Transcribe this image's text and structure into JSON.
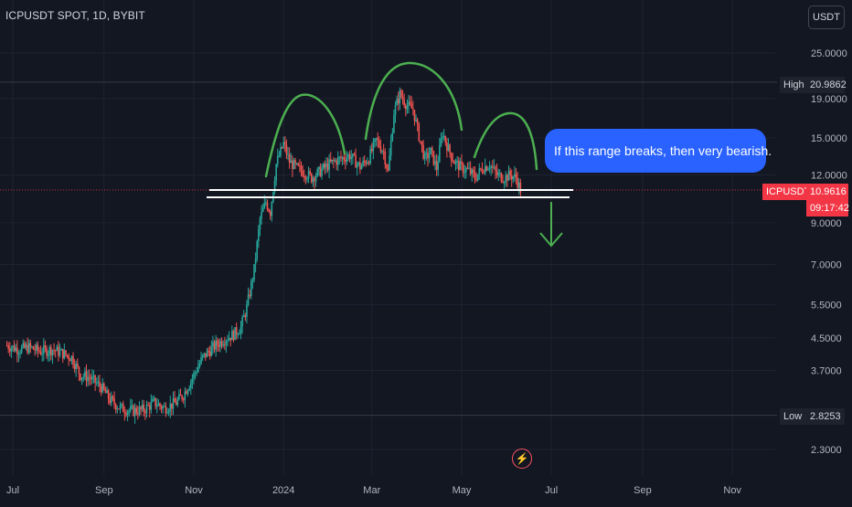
{
  "header": {
    "symbol_title": "ICPUSDT SPOT, 1D, BYBIT",
    "currency_button": "USDT"
  },
  "annotation": {
    "callout_text": "If this range breaks, then very bearish."
  },
  "price_tags": {
    "high_label": "High",
    "high_value": "20.9862",
    "low_label": "Low",
    "low_value": "2.8253",
    "symbol_label": "ICPUSDT",
    "current_value": "10.9616",
    "countdown": "09:17:42"
  },
  "icons": {
    "bolt": "lightning-icon"
  },
  "colors": {
    "background": "#131722",
    "up": "#26a69a",
    "down": "#ef5350",
    "grid": "#1f2230",
    "annotation_green": "#4caf50",
    "callout_blue": "#2962ff",
    "last_price_red": "#f23645"
  },
  "chart_data": {
    "type": "candlestick",
    "title": "ICPUSDT SPOT, 1D, BYBIT",
    "y_scale": "log",
    "ylim": [
      2.05,
      28.5
    ],
    "y_ticks": [
      {
        "label": "25.0000",
        "value": 25
      },
      {
        "label": "19.0000",
        "value": 19
      },
      {
        "label": "15.0000",
        "value": 15
      },
      {
        "label": "12.0000",
        "value": 12
      },
      {
        "label": "9.0000",
        "value": 9
      },
      {
        "label": "7.0000",
        "value": 7
      },
      {
        "label": "5.5000",
        "value": 5.5
      },
      {
        "label": "4.5000",
        "value": 4.5
      },
      {
        "label": "3.7000",
        "value": 3.7
      },
      {
        "label": "2.3000",
        "value": 2.3
      }
    ],
    "x_ticks": [
      {
        "label": "Jul",
        "date": "2023-07-01"
      },
      {
        "label": "Sep",
        "date": "2023-09-01"
      },
      {
        "label": "Nov",
        "date": "2023-11-01"
      },
      {
        "label": "2024",
        "date": "2024-01-01"
      },
      {
        "label": "Mar",
        "date": "2024-03-01"
      },
      {
        "label": "May",
        "date": "2024-05-01"
      },
      {
        "label": "Jul",
        "date": "2024-07-01"
      },
      {
        "label": "Sep",
        "date": "2024-09-01"
      },
      {
        "label": "Nov",
        "date": "2024-11-01"
      }
    ],
    "xlim": [
      "2023-06-27",
      "2024-11-30"
    ],
    "high": 20.9862,
    "low": 2.8253,
    "last": 10.9616,
    "support_levels": [
      11.3,
      10.8
    ],
    "price_path": [
      [
        "2023-06-27",
        4.3
      ],
      [
        "2023-07-05",
        4.2
      ],
      [
        "2023-07-12",
        4.25
      ],
      [
        "2023-07-20",
        4.15
      ],
      [
        "2023-07-28",
        4.2
      ],
      [
        "2023-08-04",
        4.1
      ],
      [
        "2023-08-10",
        4.0
      ],
      [
        "2023-08-16",
        3.6
      ],
      [
        "2023-08-22",
        3.55
      ],
      [
        "2023-08-30",
        3.35
      ],
      [
        "2023-09-05",
        3.1
      ],
      [
        "2023-09-12",
        2.95
      ],
      [
        "2023-09-20",
        2.9
      ],
      [
        "2023-09-28",
        2.92
      ],
      [
        "2023-10-05",
        3.05
      ],
      [
        "2023-10-12",
        2.95
      ],
      [
        "2023-10-20",
        3.05
      ],
      [
        "2023-10-25",
        3.2
      ],
      [
        "2023-11-01",
        3.6
      ],
      [
        "2023-11-07",
        4.0
      ],
      [
        "2023-11-14",
        4.25
      ],
      [
        "2023-11-21",
        4.45
      ],
      [
        "2023-11-28",
        4.6
      ],
      [
        "2023-12-03",
        4.8
      ],
      [
        "2023-12-07",
        5.4
      ],
      [
        "2023-12-12",
        6.8
      ],
      [
        "2023-12-16",
        9.2
      ],
      [
        "2023-12-20",
        10.2
      ],
      [
        "2023-12-23",
        9.6
      ],
      [
        "2023-12-27",
        12.8
      ],
      [
        "2024-01-01",
        14.5
      ],
      [
        "2024-01-05",
        13.0
      ],
      [
        "2024-01-10",
        12.5
      ],
      [
        "2024-01-15",
        12.2
      ],
      [
        "2024-01-20",
        11.8
      ],
      [
        "2024-01-25",
        12.2
      ],
      [
        "2024-02-01",
        12.8
      ],
      [
        "2024-02-08",
        13.2
      ],
      [
        "2024-02-15",
        13.5
      ],
      [
        "2024-02-22",
        12.6
      ],
      [
        "2024-02-28",
        13.3
      ],
      [
        "2024-03-04",
        14.8
      ],
      [
        "2024-03-09",
        13.8
      ],
      [
        "2024-03-12",
        12.2
      ],
      [
        "2024-03-16",
        17.5
      ],
      [
        "2024-03-20",
        19.5
      ],
      [
        "2024-03-25",
        18.2
      ],
      [
        "2024-03-29",
        17.8
      ],
      [
        "2024-04-02",
        15.2
      ],
      [
        "2024-04-06",
        13.2
      ],
      [
        "2024-04-10",
        13.8
      ],
      [
        "2024-04-14",
        12.5
      ],
      [
        "2024-04-18",
        15.5
      ],
      [
        "2024-04-22",
        14.0
      ],
      [
        "2024-04-26",
        13.0
      ],
      [
        "2024-05-01",
        12.5
      ],
      [
        "2024-05-06",
        12.3
      ],
      [
        "2024-05-10",
        11.8
      ],
      [
        "2024-05-15",
        12.5
      ],
      [
        "2024-05-20",
        12.8
      ],
      [
        "2024-05-25",
        12.0
      ],
      [
        "2024-05-30",
        11.8
      ],
      [
        "2024-06-03",
        12.0
      ],
      [
        "2024-06-07",
        11.8
      ],
      [
        "2024-06-10",
        10.96
      ]
    ]
  }
}
